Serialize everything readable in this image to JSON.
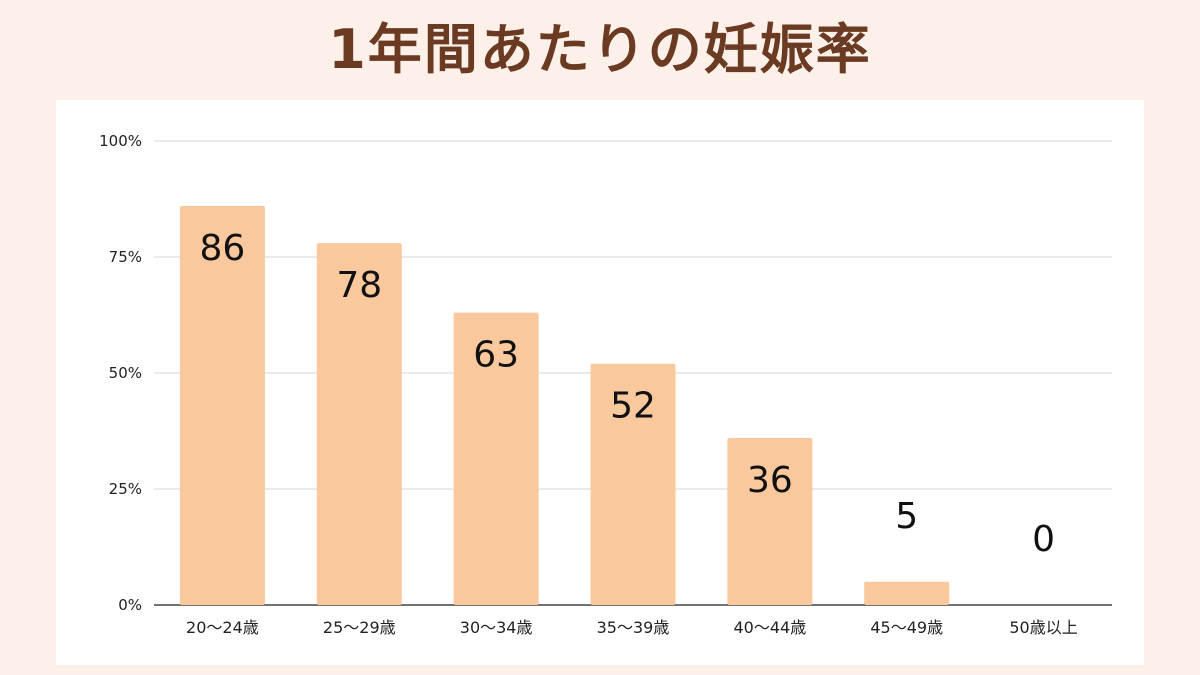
{
  "title": "1年間あたりの妊娠率",
  "chart_data": {
    "type": "bar",
    "title": "1年間あたりの妊娠率",
    "categories": [
      "20〜24歳",
      "25〜29歳",
      "30〜34歳",
      "35〜39歳",
      "40〜44歳",
      "45〜49歳",
      "50歳以上"
    ],
    "values": [
      86,
      78,
      63,
      52,
      36,
      5,
      0
    ],
    "data_labels": [
      "86",
      "78",
      "63",
      "52",
      "36",
      "5",
      "0"
    ],
    "ylim": [
      0,
      100
    ],
    "yticks": [
      0,
      25,
      50,
      75,
      100
    ],
    "ytick_labels": [
      "0%",
      "25%",
      "50%",
      "75%",
      "100%"
    ],
    "grid": true,
    "bar_color": "#f9c89d",
    "xlabel": "",
    "ylabel": ""
  }
}
